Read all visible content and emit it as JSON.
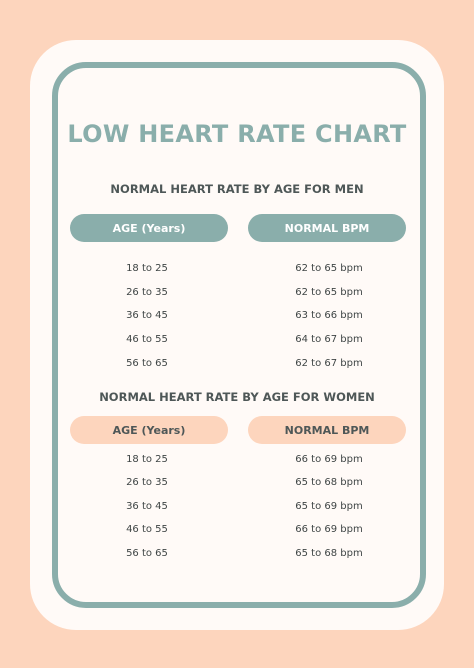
{
  "title": "LOW HEART RATE CHART",
  "men": {
    "heading": "NORMAL HEART RATE BY AGE FOR MEN",
    "col_age": "AGE (Years)",
    "col_bpm": "NORMAL BPM",
    "rows": [
      {
        "age": "18 to 25",
        "bpm": "62 to 65 bpm"
      },
      {
        "age": "26 to 35",
        "bpm": "62 to 65 bpm"
      },
      {
        "age": "36 to 45",
        "bpm": "63 to 66 bpm"
      },
      {
        "age": "46 to 55",
        "bpm": "64 to 67 bpm"
      },
      {
        "age": "56 to 65",
        "bpm": "62 to 67 bpm"
      }
    ]
  },
  "women": {
    "heading": "NORMAL HEART RATE BY AGE FOR WOMEN",
    "col_age": "AGE (Years)",
    "col_bpm": "NORMAL BPM",
    "rows": [
      {
        "age": "18 to 25",
        "bpm": "66 to 69 bpm"
      },
      {
        "age": "26 to 35",
        "bpm": "65 to 68 bpm"
      },
      {
        "age": "36 to 45",
        "bpm": "65 to 69 bpm"
      },
      {
        "age": "46 to 55",
        "bpm": "66 to 69 bpm"
      },
      {
        "age": "56 to 65",
        "bpm": "65 to 68 bpm"
      }
    ]
  },
  "colors": {
    "teal": "#8aaeab",
    "peach": "#fdd5bd",
    "paper": "#fffaf7",
    "text": "#4e5757"
  }
}
